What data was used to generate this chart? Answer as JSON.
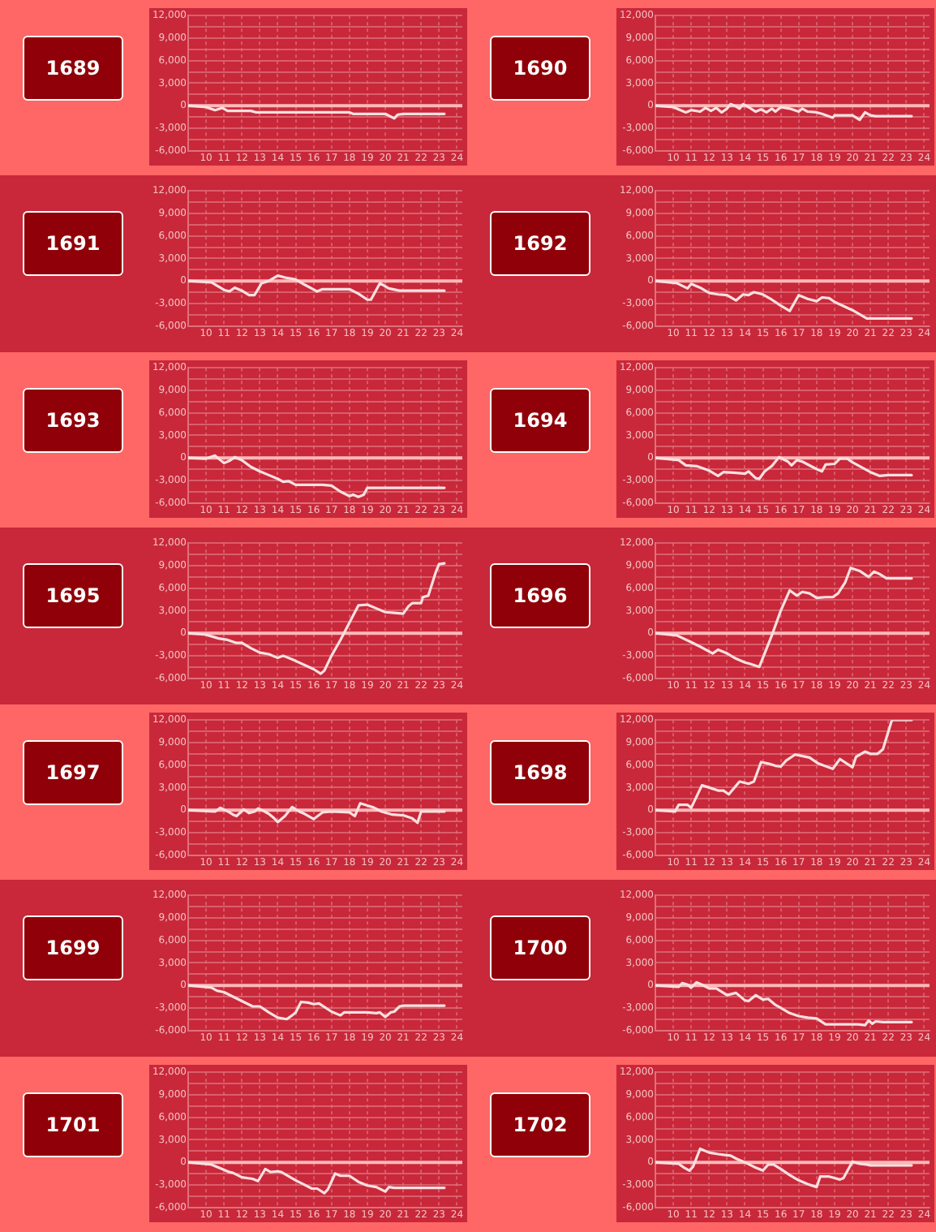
{
  "chart_data": [
    {
      "type": "line",
      "title": "1689",
      "x": [
        9,
        10,
        10.5,
        10.9,
        11.2,
        12.5,
        12.8,
        18,
        18.2,
        20,
        20.5,
        20.7,
        21,
        23.3
      ],
      "values": [
        0,
        -200,
        -600,
        -300,
        -700,
        -700,
        -900,
        -900,
        -1100,
        -1100,
        -1700,
        -1200,
        -1100,
        -1100
      ],
      "color": "#f8e0e0",
      "xlim": [
        9,
        24.3
      ],
      "xticks": [
        10,
        11,
        12,
        13,
        14,
        15,
        16,
        17,
        18,
        19,
        20,
        21,
        22,
        23,
        24
      ],
      "ylim": [
        -6000,
        12000
      ],
      "yticks": [
        {
          "value": -6000,
          "label": "-6,000"
        },
        {
          "value": -4500,
          "label": null
        },
        {
          "value": -3000,
          "label": "-3,000"
        },
        {
          "value": -1500,
          "label": null
        },
        {
          "value": 0,
          "label": "0"
        },
        {
          "value": 1500,
          "label": null
        },
        {
          "value": 3000,
          "label": "3,000"
        },
        {
          "value": 4500,
          "label": null
        },
        {
          "value": 6000,
          "label": "6,000"
        },
        {
          "value": 7500,
          "label": null
        },
        {
          "value": 9000,
          "label": "9,000"
        },
        {
          "value": 10500,
          "label": null
        },
        {
          "value": 12000,
          "label": "12,000"
        }
      ],
      "grid": true,
      "marker": "none",
      "legend": false,
      "ref_lines": [
        {
          "axis": "y",
          "value": 0,
          "color": "#ffb8b8"
        }
      ]
    },
    {
      "type": "line",
      "title": "1690",
      "x": [
        9,
        10,
        10.7,
        11,
        11.5,
        11.8,
        12.1,
        12.4,
        12.7,
        13,
        13.2,
        13.5,
        13.7,
        13.9,
        14.2,
        14.6,
        14.9,
        15.2,
        15.5,
        15.7,
        16,
        16.5,
        17,
        17.2,
        17.5,
        18,
        18.3,
        18.9,
        19,
        20,
        20.4,
        20.7,
        21,
        21.3,
        23.3
      ],
      "values": [
        0,
        -200,
        -900,
        -600,
        -800,
        -300,
        -700,
        -300,
        -900,
        -400,
        200,
        -100,
        -400,
        200,
        -200,
        -800,
        -500,
        -900,
        -400,
        -800,
        -200,
        -400,
        -800,
        -400,
        -800,
        -900,
        -1100,
        -1600,
        -1300,
        -1300,
        -1900,
        -900,
        -1300,
        -1400,
        -1400
      ],
      "color": "#f8e0e0",
      "xlim": [
        9,
        24.3
      ],
      "xticks": [
        10,
        11,
        12,
        13,
        14,
        15,
        16,
        17,
        18,
        19,
        20,
        21,
        22,
        23,
        24
      ],
      "ylim": [
        -6000,
        12000
      ],
      "yticks": [
        {
          "value": -6000,
          "label": "-6,000"
        },
        {
          "value": -4500,
          "label": null
        },
        {
          "value": -3000,
          "label": "-3,000"
        },
        {
          "value": -1500,
          "label": null
        },
        {
          "value": 0,
          "label": "0"
        },
        {
          "value": 1500,
          "label": null
        },
        {
          "value": 3000,
          "label": "3,000"
        },
        {
          "value": 4500,
          "label": null
        },
        {
          "value": 6000,
          "label": "6,000"
        },
        {
          "value": 7500,
          "label": null
        },
        {
          "value": 9000,
          "label": "9,000"
        },
        {
          "value": 10500,
          "label": null
        },
        {
          "value": 12000,
          "label": "12,000"
        }
      ],
      "grid": true,
      "marker": "none",
      "legend": false,
      "ref_lines": [
        {
          "axis": "y",
          "value": 0,
          "color": "#ffb8b8"
        }
      ]
    },
    {
      "type": "line",
      "title": "1691",
      "x": [
        9,
        10.3,
        11,
        11.3,
        11.6,
        12,
        12.4,
        12.7,
        13.1,
        13.5,
        14,
        14.5,
        15,
        15.5,
        16.2,
        16.5,
        18,
        18.5,
        19,
        19.2,
        19.7,
        20.2,
        20.8,
        23.3
      ],
      "values": [
        0,
        -200,
        -1200,
        -1400,
        -900,
        -1300,
        -1900,
        -1900,
        -300,
        0,
        700,
        400,
        200,
        -500,
        -1400,
        -1100,
        -1100,
        -1700,
        -2500,
        -2500,
        -300,
        -1000,
        -1300,
        -1300
      ],
      "color": "#f8e0e0",
      "xlim": [
        9,
        24.3
      ],
      "xticks": [
        10,
        11,
        12,
        13,
        14,
        15,
        16,
        17,
        18,
        19,
        20,
        21,
        22,
        23,
        24
      ],
      "ylim": [
        -6000,
        12000
      ],
      "yticks": [
        {
          "value": -6000,
          "label": "-6,000"
        },
        {
          "value": -4500,
          "label": null
        },
        {
          "value": -3000,
          "label": "-3,000"
        },
        {
          "value": -1500,
          "label": null
        },
        {
          "value": 0,
          "label": "0"
        },
        {
          "value": 1500,
          "label": null
        },
        {
          "value": 3000,
          "label": "3,000"
        },
        {
          "value": 4500,
          "label": null
        },
        {
          "value": 6000,
          "label": "6,000"
        },
        {
          "value": 7500,
          "label": null
        },
        {
          "value": 9000,
          "label": "9,000"
        },
        {
          "value": 10500,
          "label": null
        },
        {
          "value": 12000,
          "label": "12,000"
        }
      ],
      "grid": true,
      "marker": "none",
      "legend": false,
      "ref_lines": [
        {
          "axis": "y",
          "value": 0,
          "color": "#ffb8b8"
        }
      ]
    },
    {
      "type": "line",
      "title": "1692",
      "x": [
        9,
        10.2,
        10.8,
        11,
        11.5,
        12,
        12.5,
        13,
        13.5,
        13.9,
        14.2,
        14.5,
        15,
        15.5,
        16,
        16.5,
        17,
        17.5,
        18,
        18.3,
        18.7,
        19,
        20,
        20.8,
        21,
        23.3
      ],
      "values": [
        0,
        -300,
        -1000,
        -400,
        -900,
        -1600,
        -1800,
        -1900,
        -2600,
        -1800,
        -1900,
        -1500,
        -1800,
        -2500,
        -3300,
        -4000,
        -1900,
        -2400,
        -2700,
        -2200,
        -2300,
        -2800,
        -3900,
        -5000,
        -5000,
        -5000
      ],
      "color": "#f8e0e0",
      "xlim": [
        9,
        24.3
      ],
      "xticks": [
        10,
        11,
        12,
        13,
        14,
        15,
        16,
        17,
        18,
        19,
        20,
        21,
        22,
        23,
        24
      ],
      "ylim": [
        -6000,
        12000
      ],
      "yticks": [
        {
          "value": -6000,
          "label": "-6,000"
        },
        {
          "value": -4500,
          "label": null
        },
        {
          "value": -3000,
          "label": "-3,000"
        },
        {
          "value": -1500,
          "label": null
        },
        {
          "value": 0,
          "label": "0"
        },
        {
          "value": 1500,
          "label": null
        },
        {
          "value": 3000,
          "label": "3,000"
        },
        {
          "value": 4500,
          "label": null
        },
        {
          "value": 6000,
          "label": "6,000"
        },
        {
          "value": 7500,
          "label": null
        },
        {
          "value": 9000,
          "label": "9,000"
        },
        {
          "value": 10500,
          "label": null
        },
        {
          "value": 12000,
          "label": "12,000"
        }
      ],
      "grid": true,
      "marker": "none",
      "legend": false,
      "ref_lines": [
        {
          "axis": "y",
          "value": 0,
          "color": "#ffb8b8"
        }
      ]
    },
    {
      "type": "line",
      "title": "1693",
      "x": [
        9,
        10,
        10.5,
        11,
        11.3,
        11.6,
        12,
        12.5,
        13,
        13.5,
        14,
        14.3,
        14.6,
        15,
        16.5,
        17,
        17.5,
        18,
        18.2,
        18.5,
        18.8,
        19,
        23.3
      ],
      "values": [
        0,
        -100,
        300,
        -700,
        -400,
        100,
        -300,
        -1200,
        -1800,
        -2300,
        -2800,
        -3200,
        -3100,
        -3600,
        -3600,
        -3700,
        -4500,
        -5100,
        -4900,
        -5200,
        -4900,
        -4000,
        -4000
      ],
      "color": "#f8e0e0",
      "xlim": [
        9,
        24.3
      ],
      "xticks": [
        10,
        11,
        12,
        13,
        14,
        15,
        16,
        17,
        18,
        19,
        20,
        21,
        22,
        23,
        24
      ],
      "ylim": [
        -6000,
        12000
      ],
      "yticks": [
        {
          "value": -6000,
          "label": "-6,000"
        },
        {
          "value": -4500,
          "label": null
        },
        {
          "value": -3000,
          "label": "-3,000"
        },
        {
          "value": -1500,
          "label": null
        },
        {
          "value": 0,
          "label": "0"
        },
        {
          "value": 1500,
          "label": null
        },
        {
          "value": 3000,
          "label": "3,000"
        },
        {
          "value": 4500,
          "label": null
        },
        {
          "value": 6000,
          "label": "6,000"
        },
        {
          "value": 7500,
          "label": null
        },
        {
          "value": 9000,
          "label": "9,000"
        },
        {
          "value": 10500,
          "label": null
        },
        {
          "value": 12000,
          "label": "12,000"
        }
      ],
      "grid": true,
      "marker": "none",
      "legend": false,
      "ref_lines": [
        {
          "axis": "y",
          "value": 0,
          "color": "#ffb8b8"
        }
      ]
    },
    {
      "type": "line",
      "title": "1694",
      "x": [
        9,
        10.3,
        10.7,
        11.3,
        12,
        12.5,
        12.8,
        13.5,
        14,
        14.2,
        14.6,
        14.8,
        15.1,
        15.5,
        15.9,
        16.4,
        16.6,
        16.9,
        17.2,
        18,
        18.3,
        18.5,
        19,
        19.3,
        19.7,
        20,
        21,
        21.5,
        22,
        23.3
      ],
      "values": [
        0,
        -300,
        -1000,
        -1100,
        -1700,
        -2400,
        -1900,
        -2000,
        -2100,
        -1800,
        -2700,
        -2800,
        -1800,
        -1100,
        100,
        -500,
        -1000,
        -300,
        -500,
        -1500,
        -1800,
        -900,
        -800,
        -100,
        -100,
        -600,
        -1900,
        -2400,
        -2300,
        -2300
      ],
      "color": "#f8e0e0",
      "xlim": [
        9,
        24.3
      ],
      "xticks": [
        10,
        11,
        12,
        13,
        14,
        15,
        16,
        17,
        18,
        19,
        20,
        21,
        22,
        23,
        24
      ],
      "ylim": [
        -6000,
        12000
      ],
      "yticks": [
        {
          "value": -6000,
          "label": "-6,000"
        },
        {
          "value": -4500,
          "label": null
        },
        {
          "value": -3000,
          "label": "-3,000"
        },
        {
          "value": -1500,
          "label": null
        },
        {
          "value": 0,
          "label": "0"
        },
        {
          "value": 1500,
          "label": null
        },
        {
          "value": 3000,
          "label": "3,000"
        },
        {
          "value": 4500,
          "label": null
        },
        {
          "value": 6000,
          "label": "6,000"
        },
        {
          "value": 7500,
          "label": null
        },
        {
          "value": 9000,
          "label": "9,000"
        },
        {
          "value": 10500,
          "label": null
        },
        {
          "value": 12000,
          "label": "12,000"
        }
      ],
      "grid": true,
      "marker": "none",
      "legend": false,
      "ref_lines": [
        {
          "axis": "y",
          "value": 0,
          "color": "#ffb8b8"
        }
      ]
    },
    {
      "type": "line",
      "title": "1695",
      "x": [
        9,
        10,
        10.7,
        11.2,
        11.7,
        12,
        12.5,
        13,
        13.5,
        14,
        14.3,
        15,
        16,
        16.4,
        16.6,
        17,
        17.5,
        18,
        18.5,
        19,
        19.5,
        20,
        20.5,
        21,
        21.3,
        21.5,
        22,
        22.1,
        22.4,
        22.8,
        23,
        23.3
      ],
      "values": [
        0,
        -200,
        -700,
        -900,
        -1300,
        -1300,
        -2000,
        -2600,
        -2800,
        -3300,
        -3000,
        -3700,
        -4800,
        -5400,
        -5000,
        -3000,
        -900,
        1400,
        3700,
        3800,
        3300,
        2800,
        2700,
        2600,
        3600,
        4000,
        4000,
        4800,
        5000,
        8000,
        9200,
        9300
      ],
      "color": "#f8e0e0",
      "xlim": [
        9,
        24.3
      ],
      "xticks": [
        10,
        11,
        12,
        13,
        14,
        15,
        16,
        17,
        18,
        19,
        20,
        21,
        22,
        23,
        24
      ],
      "ylim": [
        -6000,
        12000
      ],
      "yticks": [
        {
          "value": -6000,
          "label": "-6,000"
        },
        {
          "value": -4500,
          "label": null
        },
        {
          "value": -3000,
          "label": "-3,000"
        },
        {
          "value": -1500,
          "label": null
        },
        {
          "value": 0,
          "label": "0"
        },
        {
          "value": 1500,
          "label": null
        },
        {
          "value": 3000,
          "label": "3,000"
        },
        {
          "value": 4500,
          "label": null
        },
        {
          "value": 6000,
          "label": "6,000"
        },
        {
          "value": 7500,
          "label": null
        },
        {
          "value": 9000,
          "label": "9,000"
        },
        {
          "value": 10500,
          "label": null
        },
        {
          "value": 12000,
          "label": "12,000"
        }
      ],
      "grid": true,
      "marker": "none",
      "legend": false,
      "ref_lines": [
        {
          "axis": "y",
          "value": 0,
          "color": "#ffb8b8"
        }
      ]
    },
    {
      "type": "line",
      "title": "1696",
      "x": [
        9,
        10.2,
        11,
        11.5,
        12.2,
        12.5,
        13,
        13.5,
        14,
        14.3,
        14.8,
        15,
        15.5,
        16,
        16.5,
        16.9,
        17.2,
        17.6,
        18,
        18.5,
        18.9,
        19.2,
        19.6,
        19.9,
        20.4,
        20.9,
        21.2,
        21.5,
        21.9,
        22,
        23.3
      ],
      "values": [
        0,
        -300,
        -1200,
        -1800,
        -2700,
        -2200,
        -2700,
        -3400,
        -3900,
        -4100,
        -4500,
        -3300,
        -300,
        3000,
        5700,
        5000,
        5500,
        5300,
        4700,
        4800,
        4800,
        5300,
        6800,
        8700,
        8300,
        7500,
        8200,
        7900,
        7300,
        7300,
        7300
      ],
      "color": "#f8e0e0",
      "xlim": [
        9,
        24.3
      ],
      "xticks": [
        10,
        11,
        12,
        13,
        14,
        15,
        16,
        17,
        18,
        19,
        20,
        21,
        22,
        23,
        24
      ],
      "ylim": [
        -6000,
        12000
      ],
      "yticks": [
        {
          "value": -6000,
          "label": "-6,000"
        },
        {
          "value": -4500,
          "label": null
        },
        {
          "value": -3000,
          "label": "-3,000"
        },
        {
          "value": -1500,
          "label": null
        },
        {
          "value": 0,
          "label": "0"
        },
        {
          "value": 1500,
          "label": null
        },
        {
          "value": 3000,
          "label": "3,000"
        },
        {
          "value": 4500,
          "label": null
        },
        {
          "value": 6000,
          "label": "6,000"
        },
        {
          "value": 7500,
          "label": null
        },
        {
          "value": 9000,
          "label": "9,000"
        },
        {
          "value": 10500,
          "label": null
        },
        {
          "value": 12000,
          "label": "12,000"
        }
      ],
      "grid": true,
      "marker": "none",
      "legend": false,
      "ref_lines": [
        {
          "axis": "y",
          "value": 0,
          "color": "#ffb8b8"
        }
      ]
    },
    {
      "type": "line",
      "title": "1697",
      "x": [
        9,
        10.5,
        10.8,
        11.3,
        11.5,
        11.7,
        12.1,
        12.4,
        12.7,
        12.9,
        13.2,
        13.5,
        13.8,
        14,
        14.4,
        14.8,
        15.2,
        15.5,
        16,
        16.5,
        17,
        18,
        18.3,
        18.6,
        19,
        19.3,
        19.8,
        20.4,
        21,
        21.5,
        21.8,
        22,
        23.3
      ],
      "values": [
        0,
        -200,
        300,
        -300,
        -600,
        -800,
        100,
        -400,
        -200,
        200,
        -100,
        -500,
        -1100,
        -1600,
        -800,
        400,
        -200,
        -500,
        -1200,
        -300,
        -200,
        -300,
        -800,
        900,
        600,
        400,
        -200,
        -600,
        -700,
        -1100,
        -1700,
        -200,
        -200
      ],
      "color": "#f8e0e0",
      "xlim": [
        9,
        24.3
      ],
      "xticks": [
        10,
        11,
        12,
        13,
        14,
        15,
        16,
        17,
        18,
        19,
        20,
        21,
        22,
        23,
        24
      ],
      "ylim": [
        -6000,
        12000
      ],
      "yticks": [
        {
          "value": -6000,
          "label": "-6,000"
        },
        {
          "value": -4500,
          "label": null
        },
        {
          "value": -3000,
          "label": "-3,000"
        },
        {
          "value": -1500,
          "label": null
        },
        {
          "value": 0,
          "label": "0"
        },
        {
          "value": 1500,
          "label": null
        },
        {
          "value": 3000,
          "label": "3,000"
        },
        {
          "value": 4500,
          "label": null
        },
        {
          "value": 6000,
          "label": "6,000"
        },
        {
          "value": 7500,
          "label": null
        },
        {
          "value": 9000,
          "label": "9,000"
        },
        {
          "value": 10500,
          "label": null
        },
        {
          "value": 12000,
          "label": "12,000"
        }
      ],
      "grid": true,
      "marker": "none",
      "legend": false,
      "ref_lines": [
        {
          "axis": "y",
          "value": 0,
          "color": "#ffb8b8"
        }
      ]
    },
    {
      "type": "line",
      "title": "1698",
      "x": [
        9,
        10.1,
        10.3,
        10.8,
        11,
        11.6,
        12,
        12.5,
        12.8,
        13.1,
        13.7,
        14.2,
        14.5,
        14.9,
        15.3,
        15.7,
        16,
        16.3,
        16.8,
        17,
        17.6,
        18.1,
        18.9,
        19.3,
        20,
        20.2,
        20.7,
        21,
        21.4,
        21.7,
        22.2,
        23.3
      ],
      "values": [
        0,
        -200,
        700,
        700,
        300,
        3300,
        3000,
        2600,
        2600,
        2100,
        3800,
        3500,
        3800,
        6400,
        6200,
        5900,
        5800,
        6600,
        7400,
        7300,
        7000,
        6200,
        5500,
        6800,
        5700,
        7100,
        7800,
        7500,
        7500,
        8100,
        12000,
        12000
      ],
      "color": "#f8e0e0",
      "xlim": [
        9,
        24.3
      ],
      "xticks": [
        10,
        11,
        12,
        13,
        14,
        15,
        16,
        17,
        18,
        19,
        20,
        21,
        22,
        23,
        24
      ],
      "ylim": [
        -6000,
        12000
      ],
      "yticks": [
        {
          "value": -6000,
          "label": "-6,000"
        },
        {
          "value": -4500,
          "label": null
        },
        {
          "value": -3000,
          "label": "-3,000"
        },
        {
          "value": -1500,
          "label": null
        },
        {
          "value": 0,
          "label": "0"
        },
        {
          "value": 1500,
          "label": null
        },
        {
          "value": 3000,
          "label": "3,000"
        },
        {
          "value": 4500,
          "label": null
        },
        {
          "value": 6000,
          "label": "6,000"
        },
        {
          "value": 7500,
          "label": null
        },
        {
          "value": 9000,
          "label": "9,000"
        },
        {
          "value": 10500,
          "label": null
        },
        {
          "value": 12000,
          "label": "12,000"
        }
      ],
      "grid": true,
      "marker": "none",
      "legend": false,
      "ref_lines": [
        {
          "axis": "y",
          "value": 0,
          "color": "#ffb8b8"
        }
      ]
    },
    {
      "type": "line",
      "title": "1699",
      "x": [
        9,
        10.3,
        10.6,
        11,
        11.5,
        12,
        12.6,
        13,
        13.5,
        14,
        14.5,
        14.8,
        15,
        15.3,
        15.7,
        16,
        16.3,
        17,
        17.5,
        17.7,
        19,
        19.5,
        19.7,
        20,
        20.3,
        20.5,
        20.8,
        21,
        23.3
      ],
      "values": [
        0,
        -300,
        -700,
        -900,
        -1500,
        -2100,
        -2800,
        -2800,
        -3600,
        -4300,
        -4500,
        -4000,
        -3600,
        -2200,
        -2300,
        -2500,
        -2400,
        -3500,
        -4000,
        -3600,
        -3600,
        -3700,
        -3600,
        -4200,
        -3600,
        -3500,
        -2800,
        -2700,
        -2700
      ],
      "color": "#f8e0e0",
      "xlim": [
        9,
        24.3
      ],
      "xticks": [
        10,
        11,
        12,
        13,
        14,
        15,
        16,
        17,
        18,
        19,
        20,
        21,
        22,
        23,
        24
      ],
      "ylim": [
        -6000,
        12000
      ],
      "yticks": [
        {
          "value": -6000,
          "label": "-6,000"
        },
        {
          "value": -4500,
          "label": null
        },
        {
          "value": -3000,
          "label": "-3,000"
        },
        {
          "value": -1500,
          "label": null
        },
        {
          "value": 0,
          "label": "0"
        },
        {
          "value": 1500,
          "label": null
        },
        {
          "value": 3000,
          "label": "3,000"
        },
        {
          "value": 4500,
          "label": null
        },
        {
          "value": 6000,
          "label": "6,000"
        },
        {
          "value": 7500,
          "label": null
        },
        {
          "value": 9000,
          "label": "9,000"
        },
        {
          "value": 10500,
          "label": null
        },
        {
          "value": 12000,
          "label": "12,000"
        }
      ],
      "grid": true,
      "marker": "none",
      "legend": false,
      "ref_lines": [
        {
          "axis": "y",
          "value": 0,
          "color": "#ffb8b8"
        }
      ]
    },
    {
      "type": "line",
      "title": "1700",
      "x": [
        9,
        10.3,
        10.5,
        10.8,
        11,
        11.3,
        11.6,
        12,
        12.4,
        13,
        13.5,
        14,
        14.2,
        14.6,
        15,
        15.3,
        15.7,
        16,
        16.5,
        17,
        17.5,
        18,
        18.5,
        19,
        20.3,
        20.7,
        20.9,
        21.1,
        21.3,
        21.7,
        23.3
      ],
      "values": [
        0,
        -200,
        300,
        100,
        -300,
        400,
        100,
        -400,
        -400,
        -1300,
        -1000,
        -2000,
        -2100,
        -1300,
        -1900,
        -1800,
        -2600,
        -3000,
        -3700,
        -4100,
        -4300,
        -4400,
        -5200,
        -5200,
        -5200,
        -5300,
        -4700,
        -5100,
        -4800,
        -4900,
        -4900
      ],
      "color": "#f8e0e0",
      "xlim": [
        9,
        24.3
      ],
      "xticks": [
        10,
        11,
        12,
        13,
        14,
        15,
        16,
        17,
        18,
        19,
        20,
        21,
        22,
        23,
        24
      ],
      "ylim": [
        -6000,
        12000
      ],
      "yticks": [
        {
          "value": -6000,
          "label": "-6,000"
        },
        {
          "value": -4500,
          "label": null
        },
        {
          "value": -3000,
          "label": "-3,000"
        },
        {
          "value": -1500,
          "label": null
        },
        {
          "value": 0,
          "label": "0"
        },
        {
          "value": 1500,
          "label": null
        },
        {
          "value": 3000,
          "label": "3,000"
        },
        {
          "value": 4500,
          "label": null
        },
        {
          "value": 6000,
          "label": "6,000"
        },
        {
          "value": 7500,
          "label": null
        },
        {
          "value": 9000,
          "label": "9,000"
        },
        {
          "value": 10500,
          "label": null
        },
        {
          "value": 12000,
          "label": "12,000"
        }
      ],
      "grid": true,
      "marker": "none",
      "legend": false,
      "ref_lines": [
        {
          "axis": "y",
          "value": 0,
          "color": "#ffb8b8"
        }
      ]
    },
    {
      "type": "line",
      "title": "1701",
      "x": [
        9,
        10.3,
        10.8,
        11.3,
        11.5,
        12,
        12.6,
        12.9,
        13.3,
        13.6,
        14,
        14.2,
        15,
        15.5,
        15.9,
        16.2,
        16.6,
        16.8,
        17.2,
        17.5,
        18,
        18.5,
        19,
        19.5,
        20,
        20.2,
        20.5,
        23.3
      ],
      "values": [
        0,
        -300,
        -800,
        -1300,
        -1400,
        -2000,
        -2200,
        -2500,
        -900,
        -1300,
        -1200,
        -1300,
        -2400,
        -3000,
        -3500,
        -3500,
        -4100,
        -3600,
        -1500,
        -1800,
        -1800,
        -2600,
        -3100,
        -3300,
        -3900,
        -3300,
        -3400,
        -3400
      ],
      "color": "#f8e0e0",
      "xlim": [
        9,
        24.3
      ],
      "xticks": [
        10,
        11,
        12,
        13,
        14,
        15,
        16,
        17,
        18,
        19,
        20,
        21,
        22,
        23,
        24
      ],
      "ylim": [
        -6000,
        12000
      ],
      "yticks": [
        {
          "value": -6000,
          "label": "-6,000"
        },
        {
          "value": -4500,
          "label": null
        },
        {
          "value": -3000,
          "label": "-3,000"
        },
        {
          "value": -1500,
          "label": null
        },
        {
          "value": 0,
          "label": "0"
        },
        {
          "value": 1500,
          "label": null
        },
        {
          "value": 3000,
          "label": "3,000"
        },
        {
          "value": 4500,
          "label": null
        },
        {
          "value": 6000,
          "label": "6,000"
        },
        {
          "value": 7500,
          "label": null
        },
        {
          "value": 9000,
          "label": "9,000"
        },
        {
          "value": 10500,
          "label": null
        },
        {
          "value": 12000,
          "label": "12,000"
        }
      ],
      "grid": true,
      "marker": "none",
      "legend": false,
      "ref_lines": [
        {
          "axis": "y",
          "value": 0,
          "color": "#ffb8b8"
        }
      ]
    },
    {
      "type": "line",
      "title": "1702",
      "x": [
        9,
        10.3,
        10.6,
        10.9,
        11.1,
        11.5,
        12,
        12.5,
        12.8,
        13.2,
        13.5,
        14,
        14.5,
        15,
        15.3,
        15.6,
        16,
        16.5,
        17,
        17.5,
        18,
        18.2,
        18.7,
        19,
        19.3,
        19.5,
        20,
        20.4,
        20.8,
        21,
        23.3
      ],
      "values": [
        0,
        -200,
        -700,
        -1100,
        -600,
        1800,
        1300,
        1100,
        1000,
        900,
        500,
        0,
        -600,
        -1100,
        -300,
        -300,
        -900,
        -1700,
        -2400,
        -2900,
        -3300,
        -1900,
        -1900,
        -2100,
        -2300,
        -2100,
        100,
        -200,
        -300,
        -400,
        -400
      ],
      "color": "#f8e0e0",
      "xlim": [
        9,
        24.3
      ],
      "xticks": [
        10,
        11,
        12,
        13,
        14,
        15,
        16,
        17,
        18,
        19,
        20,
        21,
        22,
        23,
        24
      ],
      "ylim": [
        -6000,
        12000
      ],
      "yticks": [
        {
          "value": -6000,
          "label": "-6,000"
        },
        {
          "value": -4500,
          "label": null
        },
        {
          "value": -3000,
          "label": "-3,000"
        },
        {
          "value": -1500,
          "label": null
        },
        {
          "value": 0,
          "label": "0"
        },
        {
          "value": 1500,
          "label": null
        },
        {
          "value": 3000,
          "label": "3,000"
        },
        {
          "value": 4500,
          "label": null
        },
        {
          "value": 6000,
          "label": "6,000"
        },
        {
          "value": 7500,
          "label": null
        },
        {
          "value": 9000,
          "label": "9,000"
        },
        {
          "value": 10500,
          "label": null
        },
        {
          "value": 12000,
          "label": "12,000"
        }
      ],
      "grid": true,
      "marker": "none",
      "legend": false,
      "ref_lines": [
        {
          "axis": "y",
          "value": 0,
          "color": "#ffb8b8"
        }
      ]
    }
  ]
}
